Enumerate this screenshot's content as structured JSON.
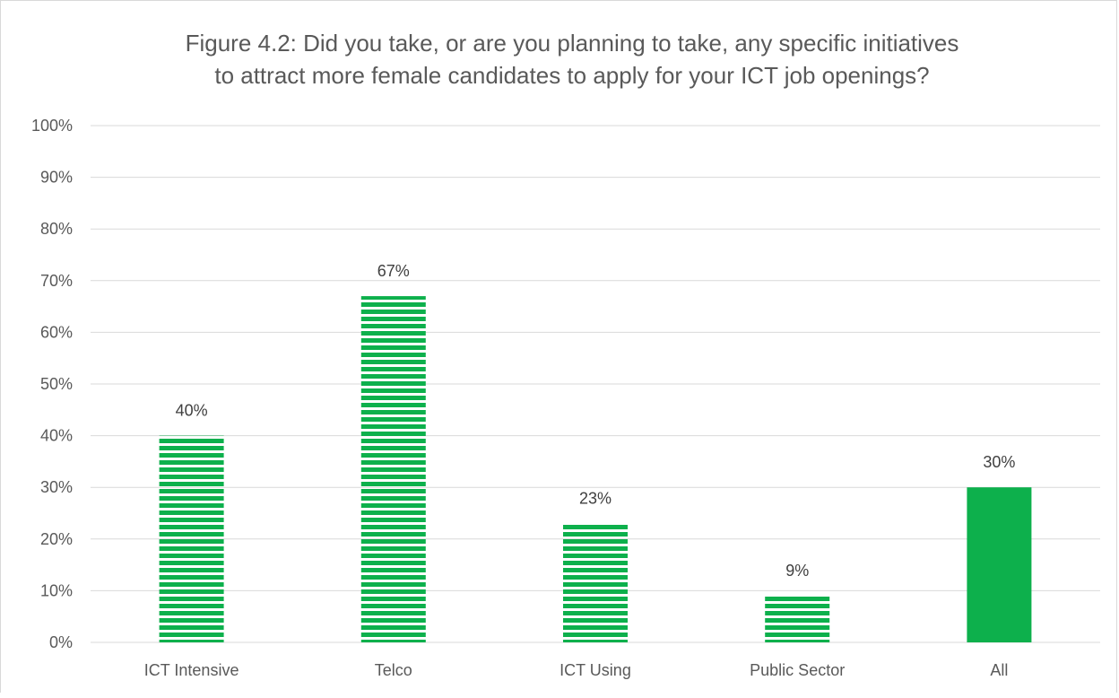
{
  "chart_data": {
    "type": "bar",
    "title_lines": [
      "Figure 4.2: Did you take, or are you planning to take, any specific initiatives",
      "to attract more female candidates to apply for your ICT job openings?"
    ],
    "categories": [
      "ICT Intensive",
      "Telco",
      "ICT Using",
      "Public Sector",
      "All"
    ],
    "values": [
      0.4,
      0.67,
      0.23,
      0.09,
      0.3
    ],
    "data_labels": [
      "40%",
      "67%",
      "23%",
      "9%",
      "30%"
    ],
    "bar_fills": [
      "striped",
      "striped",
      "striped",
      "striped",
      "solid"
    ],
    "ylim": [
      0,
      1
    ],
    "y_ticks": [
      0,
      0.1,
      0.2,
      0.3,
      0.4,
      0.5,
      0.6,
      0.7,
      0.8,
      0.9,
      1.0
    ],
    "y_tick_labels": [
      "0%",
      "10%",
      "20%",
      "30%",
      "40%",
      "50%",
      "60%",
      "70%",
      "80%",
      "90%",
      "100%"
    ],
    "grid": true,
    "legend": false,
    "colors": {
      "bar": "#0db04c",
      "grid": "#d9d9d9",
      "text": "#595959"
    }
  }
}
